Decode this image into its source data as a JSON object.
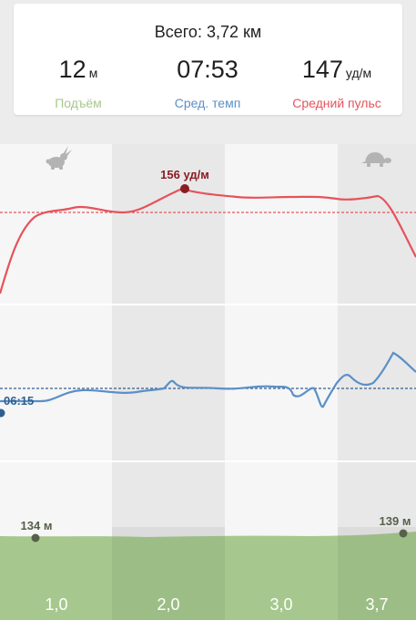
{
  "summary": {
    "total": "Всего: 3,72 км",
    "elevation": {
      "value": "12",
      "unit": "м",
      "label": "Подъём"
    },
    "pace": {
      "value": "07:53",
      "unit": "",
      "label": "Сред. темп"
    },
    "heart_rate": {
      "value": "147",
      "unit": "уд/м",
      "label": "Средний пульс"
    }
  },
  "chart": {
    "icons": [
      "rabbit-icon",
      "turtle-icon"
    ],
    "heart_rate_marker": "156 уд/м",
    "pace_marker": "06:15",
    "elevation_start": "134 м",
    "elevation_end": "139 м",
    "km_labels": [
      "1,0",
      "2,0",
      "3,0",
      "3,7"
    ]
  },
  "colors": {
    "elevation": "#a6c88e",
    "pace": "#5b8fc7",
    "heart_rate": "#e5535b",
    "hr_marker": "#8b1c22",
    "pace_marker": "#2f5f92",
    "elevation_marker": "#56614a"
  }
}
